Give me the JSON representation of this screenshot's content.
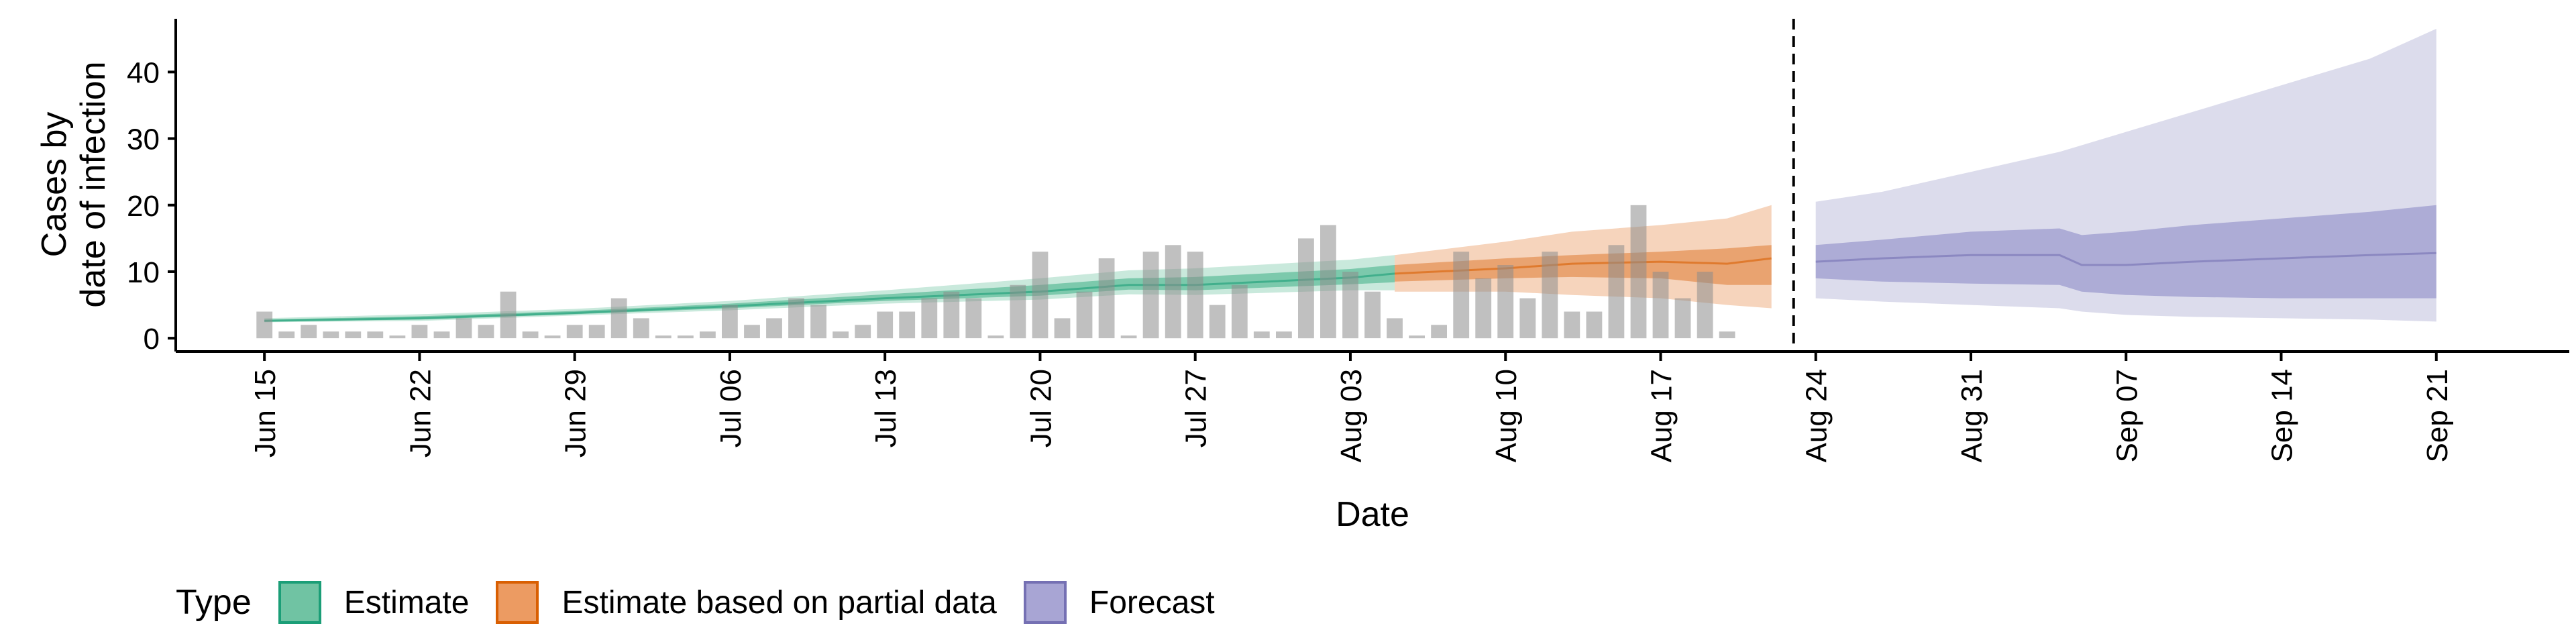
{
  "chart_data": {
    "type": "bar",
    "xlabel": "Date",
    "ylabel": [
      "Cases by",
      "date of infection"
    ],
    "yticks": [
      0,
      10,
      20,
      30,
      40
    ],
    "ylim": [
      -2,
      48
    ],
    "x_axis": {
      "start": "2020-06-11",
      "end": "2020-09-27"
    },
    "xtick_dates": [
      "2020-06-15",
      "2020-06-22",
      "2020-06-29",
      "2020-07-06",
      "2020-07-13",
      "2020-07-20",
      "2020-07-27",
      "2020-08-03",
      "2020-08-10",
      "2020-08-17",
      "2020-08-24",
      "2020-08-31",
      "2020-09-07",
      "2020-09-14",
      "2020-09-21"
    ],
    "xtick_labels": [
      "Jun 15",
      "Jun 22",
      "Jun 29",
      "Jul 06",
      "Jul 13",
      "Jul 20",
      "Jul 27",
      "Aug 03",
      "Aug 10",
      "Aug 17",
      "Aug 24",
      "Aug 31",
      "Sep 07",
      "Sep 14",
      "Sep 21"
    ],
    "vline_date": "2020-08-23",
    "observed_cases": {
      "start_date": "2020-06-15",
      "values": [
        4,
        1,
        2,
        1,
        1,
        1,
        0,
        2,
        1,
        3,
        2,
        7,
        1,
        0,
        2,
        2,
        6,
        3,
        0,
        0,
        1,
        5,
        2,
        3,
        6,
        5,
        1,
        2,
        4,
        4,
        6,
        7,
        6,
        0,
        8,
        13,
        3,
        7,
        12,
        0,
        13,
        14,
        13,
        5,
        8,
        1,
        1,
        15,
        17,
        10,
        7,
        3,
        0,
        2,
        13,
        9,
        11,
        6,
        13,
        4,
        4,
        14,
        20,
        10,
        6,
        10,
        1
      ]
    },
    "series": [
      {
        "name": "Estimate",
        "dates": [
          "2020-06-15",
          "2020-06-22",
          "2020-06-29",
          "2020-07-06",
          "2020-07-13",
          "2020-07-20",
          "2020-07-24",
          "2020-07-27",
          "2020-08-03",
          "2020-08-05"
        ],
        "median": [
          2.6,
          3.0,
          3.8,
          4.8,
          6.0,
          7.0,
          8.0,
          8.0,
          9.1,
          9.7
        ],
        "inner_lower": [
          2.5,
          2.8,
          3.6,
          4.5,
          5.6,
          6.4,
          7.3,
          7.2,
          8.1,
          8.4
        ],
        "inner_upper": [
          2.8,
          3.3,
          4.1,
          5.2,
          6.6,
          8.0,
          9.0,
          9.2,
          10.4,
          11.0
        ],
        "outer_lower": [
          2.4,
          2.6,
          3.4,
          4.2,
          5.2,
          5.8,
          6.6,
          6.5,
          7.2,
          7.2
        ],
        "outer_upper": [
          3.0,
          3.6,
          4.4,
          5.6,
          7.2,
          9.0,
          10.2,
          10.5,
          11.8,
          12.5
        ]
      },
      {
        "name": "Estimate based on partial data",
        "dates": [
          "2020-08-05",
          "2020-08-10",
          "2020-08-13",
          "2020-08-17",
          "2020-08-20",
          "2020-08-22"
        ],
        "median": [
          9.7,
          10.5,
          11.2,
          11.5,
          11.2,
          12.0
        ],
        "inner_lower": [
          8.5,
          9.0,
          9.2,
          9.0,
          8.0,
          8.0
        ],
        "inner_upper": [
          11.0,
          12.0,
          12.5,
          13.0,
          13.5,
          14.0
        ],
        "outer_lower": [
          7.0,
          7.0,
          6.5,
          6.0,
          5.0,
          4.5
        ],
        "outer_upper": [
          12.5,
          14.5,
          16.0,
          17.0,
          18.0,
          20.0
        ]
      },
      {
        "name": "Forecast",
        "dates": [
          "2020-08-24",
          "2020-08-27",
          "2020-08-31",
          "2020-09-04",
          "2020-09-05",
          "2020-09-07",
          "2020-09-10",
          "2020-09-14",
          "2020-09-18",
          "2020-09-21"
        ],
        "median": [
          11.5,
          12.0,
          12.5,
          12.5,
          11.0,
          11.0,
          11.5,
          12.0,
          12.5,
          12.8
        ],
        "inner_lower": [
          9.0,
          8.5,
          8.2,
          8.0,
          7.0,
          6.5,
          6.2,
          6.0,
          6.0,
          6.0
        ],
        "inner_upper": [
          14.0,
          14.8,
          16.0,
          16.5,
          15.5,
          16.0,
          17.0,
          18.0,
          19.0,
          20.0
        ],
        "outer_lower": [
          6.0,
          5.5,
          5.0,
          4.5,
          4.0,
          3.5,
          3.2,
          3.0,
          2.8,
          2.5
        ],
        "outer_upper": [
          20.5,
          22.0,
          25.0,
          28.0,
          29.0,
          31.0,
          34.0,
          38.0,
          42.0,
          46.5
        ]
      }
    ],
    "colors": {
      "observed_bars": "#bdbdbd",
      "estimate_band_outer": "#c9e9dc",
      "estimate_band_inner": "#6fc3a3",
      "estimate_line": "#1b9e77",
      "partial_band_outer": "#f6d4bc",
      "partial_band_inner": "#e69a63",
      "partial_line": "#d95f02",
      "forecast_band_outer": "#dcdcec",
      "forecast_band_inner": "#a5a3d2",
      "forecast_line": "#7570b3"
    },
    "legend": {
      "title": "Type",
      "placement": "bottom",
      "items": [
        {
          "label": "Estimate",
          "fill": "#70c3a3",
          "border": "#1b9e77"
        },
        {
          "label": "Estimate based on partial data",
          "fill": "#ec9b62",
          "border": "#d95f02"
        },
        {
          "label": "Forecast",
          "fill": "#a8a5d4",
          "border": "#7570b3"
        }
      ]
    }
  }
}
